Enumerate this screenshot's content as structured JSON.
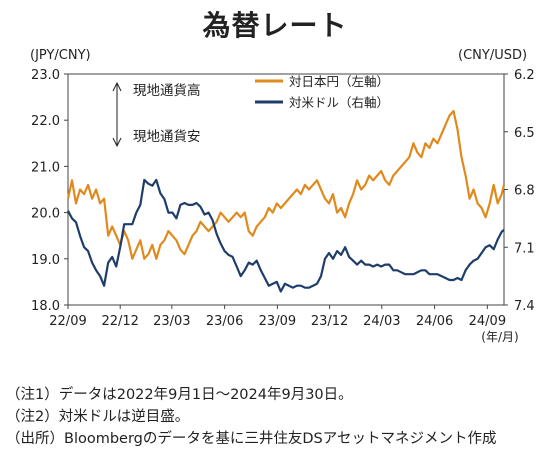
{
  "chart_data": {
    "type": "line",
    "title": "為替レート",
    "left_axis_unit": "(JPY/CNY)",
    "right_axis_unit": "(CNY/USD)",
    "x_unit_label": "(年/月)",
    "y_left_lim": [
      18.0,
      23.0
    ],
    "y_left_ticks": [
      "18.0",
      "19.0",
      "20.0",
      "21.0",
      "22.0",
      "23.0"
    ],
    "y_right_lim": [
      7.4,
      6.2
    ],
    "y_right_inverted": true,
    "y_right_ticks": [
      "6.2",
      "6.5",
      "6.8",
      "7.1",
      "7.4"
    ],
    "x_range": [
      "2022-09-01",
      "2024-09-30"
    ],
    "x_ticks": [
      {
        "date": "2022-09-01",
        "label": "22/09"
      },
      {
        "date": "2022-12-01",
        "label": "22/12"
      },
      {
        "date": "2023-03-01",
        "label": "23/03"
      },
      {
        "date": "2023-06-01",
        "label": "23/06"
      },
      {
        "date": "2023-09-01",
        "label": "23/09"
      },
      {
        "date": "2023-12-01",
        "label": "23/12"
      },
      {
        "date": "2024-03-01",
        "label": "24/03"
      },
      {
        "date": "2024-06-01",
        "label": "24/06"
      },
      {
        "date": "2024-09-01",
        "label": "24/09"
      }
    ],
    "annotation_high": "現地通貨高",
    "annotation_low": "現地通貨安",
    "grid": false,
    "legend_position": "top-center",
    "series": [
      {
        "name": "対日本円（左軸）",
        "axis": "left",
        "color": "#e08a1e",
        "points": [
          [
            "2022-09-01",
            20.3
          ],
          [
            "2022-09-08",
            20.7
          ],
          [
            "2022-09-15",
            20.2
          ],
          [
            "2022-09-22",
            20.5
          ],
          [
            "2022-09-29",
            20.4
          ],
          [
            "2022-10-06",
            20.6
          ],
          [
            "2022-10-13",
            20.3
          ],
          [
            "2022-10-20",
            20.5
          ],
          [
            "2022-10-27",
            20.2
          ],
          [
            "2022-11-03",
            20.3
          ],
          [
            "2022-11-10",
            19.5
          ],
          [
            "2022-11-17",
            19.7
          ],
          [
            "2022-11-24",
            19.5
          ],
          [
            "2022-12-01",
            19.3
          ],
          [
            "2022-12-08",
            19.6
          ],
          [
            "2022-12-15",
            19.4
          ],
          [
            "2022-12-22",
            19.0
          ],
          [
            "2022-12-29",
            19.2
          ],
          [
            "2023-01-05",
            19.4
          ],
          [
            "2023-01-12",
            19.0
          ],
          [
            "2023-01-19",
            19.1
          ],
          [
            "2023-01-26",
            19.3
          ],
          [
            "2023-02-02",
            19.0
          ],
          [
            "2023-02-09",
            19.3
          ],
          [
            "2023-02-16",
            19.4
          ],
          [
            "2023-02-23",
            19.6
          ],
          [
            "2023-03-02",
            19.5
          ],
          [
            "2023-03-09",
            19.4
          ],
          [
            "2023-03-16",
            19.2
          ],
          [
            "2023-03-23",
            19.1
          ],
          [
            "2023-03-30",
            19.3
          ],
          [
            "2023-04-06",
            19.5
          ],
          [
            "2023-04-13",
            19.6
          ],
          [
            "2023-04-20",
            19.8
          ],
          [
            "2023-04-27",
            19.7
          ],
          [
            "2023-05-04",
            19.6
          ],
          [
            "2023-05-11",
            19.7
          ],
          [
            "2023-05-18",
            19.8
          ],
          [
            "2023-05-25",
            20.0
          ],
          [
            "2023-06-01",
            19.9
          ],
          [
            "2023-06-08",
            19.8
          ],
          [
            "2023-06-15",
            19.9
          ],
          [
            "2023-06-22",
            20.0
          ],
          [
            "2023-06-29",
            19.9
          ],
          [
            "2023-07-06",
            20.0
          ],
          [
            "2023-07-13",
            19.6
          ],
          [
            "2023-07-20",
            19.5
          ],
          [
            "2023-07-27",
            19.7
          ],
          [
            "2023-08-03",
            19.8
          ],
          [
            "2023-08-10",
            19.9
          ],
          [
            "2023-08-17",
            20.1
          ],
          [
            "2023-08-24",
            20.0
          ],
          [
            "2023-08-31",
            20.2
          ],
          [
            "2023-09-07",
            20.1
          ],
          [
            "2023-09-14",
            20.2
          ],
          [
            "2023-09-21",
            20.3
          ],
          [
            "2023-09-28",
            20.4
          ],
          [
            "2023-10-05",
            20.5
          ],
          [
            "2023-10-12",
            20.4
          ],
          [
            "2023-10-19",
            20.6
          ],
          [
            "2023-10-26",
            20.5
          ],
          [
            "2023-11-02",
            20.6
          ],
          [
            "2023-11-09",
            20.7
          ],
          [
            "2023-11-16",
            20.5
          ],
          [
            "2023-11-23",
            20.3
          ],
          [
            "2023-11-30",
            20.2
          ],
          [
            "2023-12-07",
            20.4
          ],
          [
            "2023-12-14",
            20.0
          ],
          [
            "2023-12-21",
            20.1
          ],
          [
            "2023-12-28",
            19.9
          ],
          [
            "2024-01-04",
            20.2
          ],
          [
            "2024-01-11",
            20.4
          ],
          [
            "2024-01-18",
            20.7
          ],
          [
            "2024-01-25",
            20.5
          ],
          [
            "2024-02-01",
            20.6
          ],
          [
            "2024-02-08",
            20.8
          ],
          [
            "2024-02-15",
            20.7
          ],
          [
            "2024-02-22",
            20.8
          ],
          [
            "2024-02-29",
            20.9
          ],
          [
            "2024-03-07",
            20.7
          ],
          [
            "2024-03-14",
            20.6
          ],
          [
            "2024-03-21",
            20.8
          ],
          [
            "2024-03-28",
            20.9
          ],
          [
            "2024-04-04",
            21.0
          ],
          [
            "2024-04-11",
            21.1
          ],
          [
            "2024-04-18",
            21.2
          ],
          [
            "2024-04-25",
            21.5
          ],
          [
            "2024-05-02",
            21.3
          ],
          [
            "2024-05-09",
            21.2
          ],
          [
            "2024-05-16",
            21.5
          ],
          [
            "2024-05-23",
            21.4
          ],
          [
            "2024-05-30",
            21.6
          ],
          [
            "2024-06-06",
            21.5
          ],
          [
            "2024-06-13",
            21.7
          ],
          [
            "2024-06-20",
            21.9
          ],
          [
            "2024-06-27",
            22.1
          ],
          [
            "2024-07-04",
            22.2
          ],
          [
            "2024-07-11",
            21.8
          ],
          [
            "2024-07-18",
            21.2
          ],
          [
            "2024-07-25",
            20.8
          ],
          [
            "2024-08-01",
            20.3
          ],
          [
            "2024-08-08",
            20.5
          ],
          [
            "2024-08-15",
            20.2
          ],
          [
            "2024-08-22",
            20.1
          ],
          [
            "2024-08-29",
            19.9
          ],
          [
            "2024-09-05",
            20.2
          ],
          [
            "2024-09-12",
            20.6
          ],
          [
            "2024-09-19",
            20.2
          ],
          [
            "2024-09-26",
            20.4
          ],
          [
            "2024-09-30",
            20.6
          ]
        ]
      },
      {
        "name": "対米ドル（右軸）",
        "axis": "right",
        "color": "#1f3d6b",
        "points": [
          [
            "2022-09-01",
            6.91
          ],
          [
            "2022-09-08",
            6.95
          ],
          [
            "2022-09-15",
            6.97
          ],
          [
            "2022-09-22",
            7.04
          ],
          [
            "2022-09-29",
            7.1
          ],
          [
            "2022-10-06",
            7.12
          ],
          [
            "2022-10-13",
            7.18
          ],
          [
            "2022-10-20",
            7.22
          ],
          [
            "2022-10-27",
            7.25
          ],
          [
            "2022-11-03",
            7.3
          ],
          [
            "2022-11-10",
            7.18
          ],
          [
            "2022-11-17",
            7.15
          ],
          [
            "2022-11-24",
            7.2
          ],
          [
            "2022-12-01",
            7.1
          ],
          [
            "2022-12-08",
            6.98
          ],
          [
            "2022-12-15",
            6.98
          ],
          [
            "2022-12-22",
            6.98
          ],
          [
            "2022-12-29",
            6.92
          ],
          [
            "2023-01-05",
            6.88
          ],
          [
            "2023-01-12",
            6.75
          ],
          [
            "2023-01-19",
            6.77
          ],
          [
            "2023-01-26",
            6.78
          ],
          [
            "2023-02-02",
            6.75
          ],
          [
            "2023-02-09",
            6.82
          ],
          [
            "2023-02-16",
            6.85
          ],
          [
            "2023-02-23",
            6.92
          ],
          [
            "2023-03-02",
            6.92
          ],
          [
            "2023-03-09",
            6.95
          ],
          [
            "2023-03-16",
            6.88
          ],
          [
            "2023-03-23",
            6.87
          ],
          [
            "2023-03-30",
            6.88
          ],
          [
            "2023-04-06",
            6.88
          ],
          [
            "2023-04-13",
            6.87
          ],
          [
            "2023-04-20",
            6.89
          ],
          [
            "2023-04-27",
            6.93
          ],
          [
            "2023-05-04",
            6.92
          ],
          [
            "2023-05-11",
            6.96
          ],
          [
            "2023-05-18",
            7.03
          ],
          [
            "2023-05-25",
            7.08
          ],
          [
            "2023-06-01",
            7.12
          ],
          [
            "2023-06-08",
            7.14
          ],
          [
            "2023-06-15",
            7.15
          ],
          [
            "2023-06-22",
            7.2
          ],
          [
            "2023-06-29",
            7.25
          ],
          [
            "2023-07-06",
            7.22
          ],
          [
            "2023-07-13",
            7.18
          ],
          [
            "2023-07-20",
            7.19
          ],
          [
            "2023-07-27",
            7.17
          ],
          [
            "2023-08-03",
            7.22
          ],
          [
            "2023-08-10",
            7.26
          ],
          [
            "2023-08-17",
            7.3
          ],
          [
            "2023-08-24",
            7.29
          ],
          [
            "2023-08-31",
            7.28
          ],
          [
            "2023-09-07",
            7.33
          ],
          [
            "2023-09-14",
            7.29
          ],
          [
            "2023-09-21",
            7.3
          ],
          [
            "2023-09-28",
            7.31
          ],
          [
            "2023-10-05",
            7.3
          ],
          [
            "2023-10-12",
            7.3
          ],
          [
            "2023-10-19",
            7.31
          ],
          [
            "2023-10-26",
            7.31
          ],
          [
            "2023-11-02",
            7.3
          ],
          [
            "2023-11-09",
            7.29
          ],
          [
            "2023-11-16",
            7.25
          ],
          [
            "2023-11-23",
            7.16
          ],
          [
            "2023-11-30",
            7.13
          ],
          [
            "2023-12-07",
            7.16
          ],
          [
            "2023-12-14",
            7.12
          ],
          [
            "2023-12-21",
            7.14
          ],
          [
            "2023-12-28",
            7.1
          ],
          [
            "2024-01-04",
            7.15
          ],
          [
            "2024-01-11",
            7.17
          ],
          [
            "2024-01-18",
            7.19
          ],
          [
            "2024-01-25",
            7.17
          ],
          [
            "2024-02-01",
            7.19
          ],
          [
            "2024-02-08",
            7.19
          ],
          [
            "2024-02-15",
            7.2
          ],
          [
            "2024-02-22",
            7.19
          ],
          [
            "2024-02-29",
            7.2
          ],
          [
            "2024-03-07",
            7.19
          ],
          [
            "2024-03-14",
            7.19
          ],
          [
            "2024-03-21",
            7.22
          ],
          [
            "2024-03-28",
            7.22
          ],
          [
            "2024-04-04",
            7.23
          ],
          [
            "2024-04-11",
            7.24
          ],
          [
            "2024-04-18",
            7.24
          ],
          [
            "2024-04-25",
            7.24
          ],
          [
            "2024-05-02",
            7.23
          ],
          [
            "2024-05-09",
            7.22
          ],
          [
            "2024-05-16",
            7.22
          ],
          [
            "2024-05-23",
            7.24
          ],
          [
            "2024-05-30",
            7.24
          ],
          [
            "2024-06-06",
            7.24
          ],
          [
            "2024-06-13",
            7.25
          ],
          [
            "2024-06-20",
            7.26
          ],
          [
            "2024-06-27",
            7.27
          ],
          [
            "2024-07-04",
            7.27
          ],
          [
            "2024-07-11",
            7.26
          ],
          [
            "2024-07-18",
            7.27
          ],
          [
            "2024-07-25",
            7.22
          ],
          [
            "2024-08-01",
            7.19
          ],
          [
            "2024-08-08",
            7.17
          ],
          [
            "2024-08-15",
            7.16
          ],
          [
            "2024-08-22",
            7.13
          ],
          [
            "2024-08-29",
            7.1
          ],
          [
            "2024-09-05",
            7.09
          ],
          [
            "2024-09-12",
            7.11
          ],
          [
            "2024-09-19",
            7.06
          ],
          [
            "2024-09-26",
            7.02
          ],
          [
            "2024-09-30",
            7.01
          ]
        ]
      }
    ]
  },
  "notes": [
    "（注1）データは2022年9月1日～2024年9月30日。",
    "（注2）対米ドルは逆目盛。",
    "（出所）Bloombergのデータを基に三井住友DSアセットマネジメント作成"
  ]
}
